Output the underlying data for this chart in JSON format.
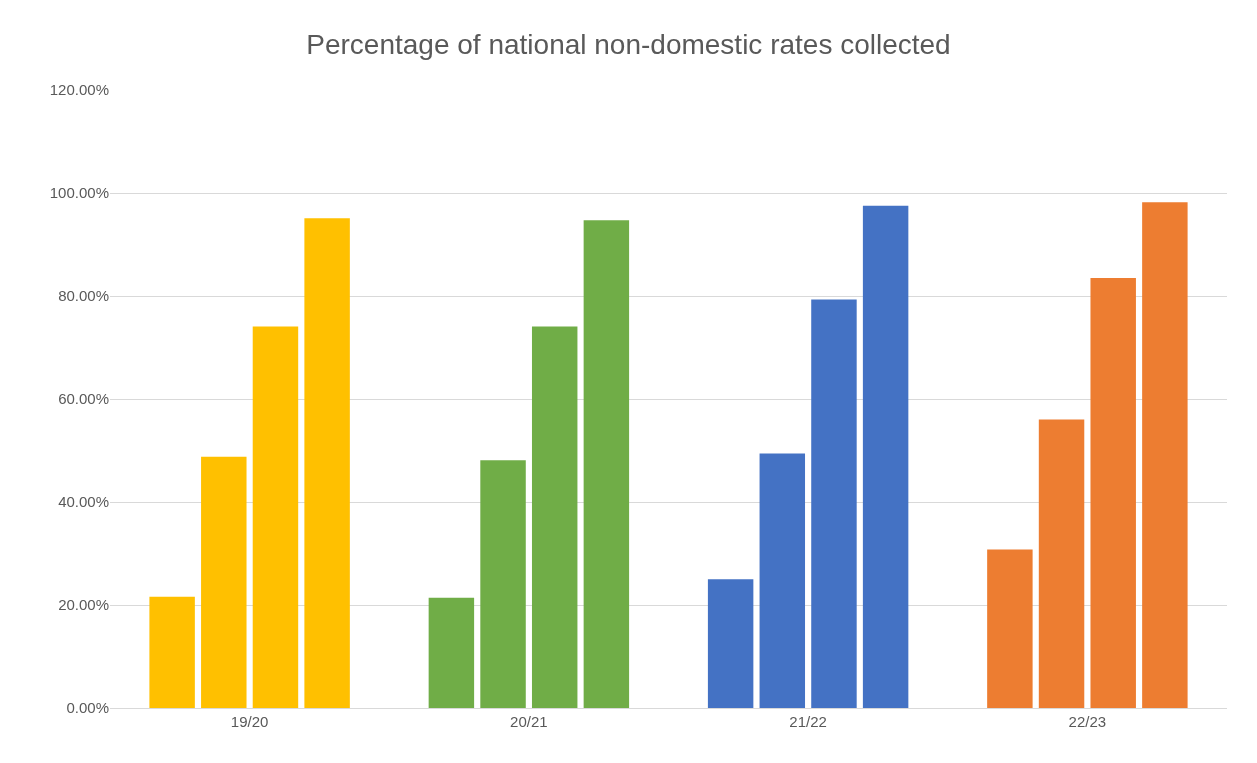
{
  "chart_data": {
    "type": "bar",
    "title": "Percentage of national non-domestic rates collected",
    "categories": [
      "19/20",
      "20/21",
      "21/22",
      "22/23"
    ],
    "series": [
      {
        "colors": [
          "#ffc000",
          "#70ad47",
          "#4472c4",
          "#ed7d31"
        ],
        "values": [
          21.6,
          21.4,
          25.0,
          30.8
        ]
      },
      {
        "colors": [
          "#ffc000",
          "#70ad47",
          "#4472c4",
          "#ed7d31"
        ],
        "values": [
          48.8,
          48.1,
          49.4,
          56.0
        ]
      },
      {
        "colors": [
          "#ffc000",
          "#70ad47",
          "#4472c4",
          "#ed7d31"
        ],
        "values": [
          74.1,
          74.1,
          79.3,
          83.5
        ]
      },
      {
        "colors": [
          "#ffc000",
          "#70ad47",
          "#4472c4",
          "#ed7d31"
        ],
        "values": [
          95.1,
          94.7,
          97.5,
          98.2
        ]
      }
    ],
    "ylim": [
      0,
      120
    ],
    "yticks": [
      {
        "value": 0,
        "label": "0.00%"
      },
      {
        "value": 20,
        "label": "20.00%"
      },
      {
        "value": 40,
        "label": "40.00%"
      },
      {
        "value": 60,
        "label": "60.00%"
      },
      {
        "value": 80,
        "label": "80.00%"
      },
      {
        "value": 100,
        "label": "100.00%"
      },
      {
        "value": 120,
        "label": "120.00%"
      }
    ],
    "grid": "y"
  }
}
